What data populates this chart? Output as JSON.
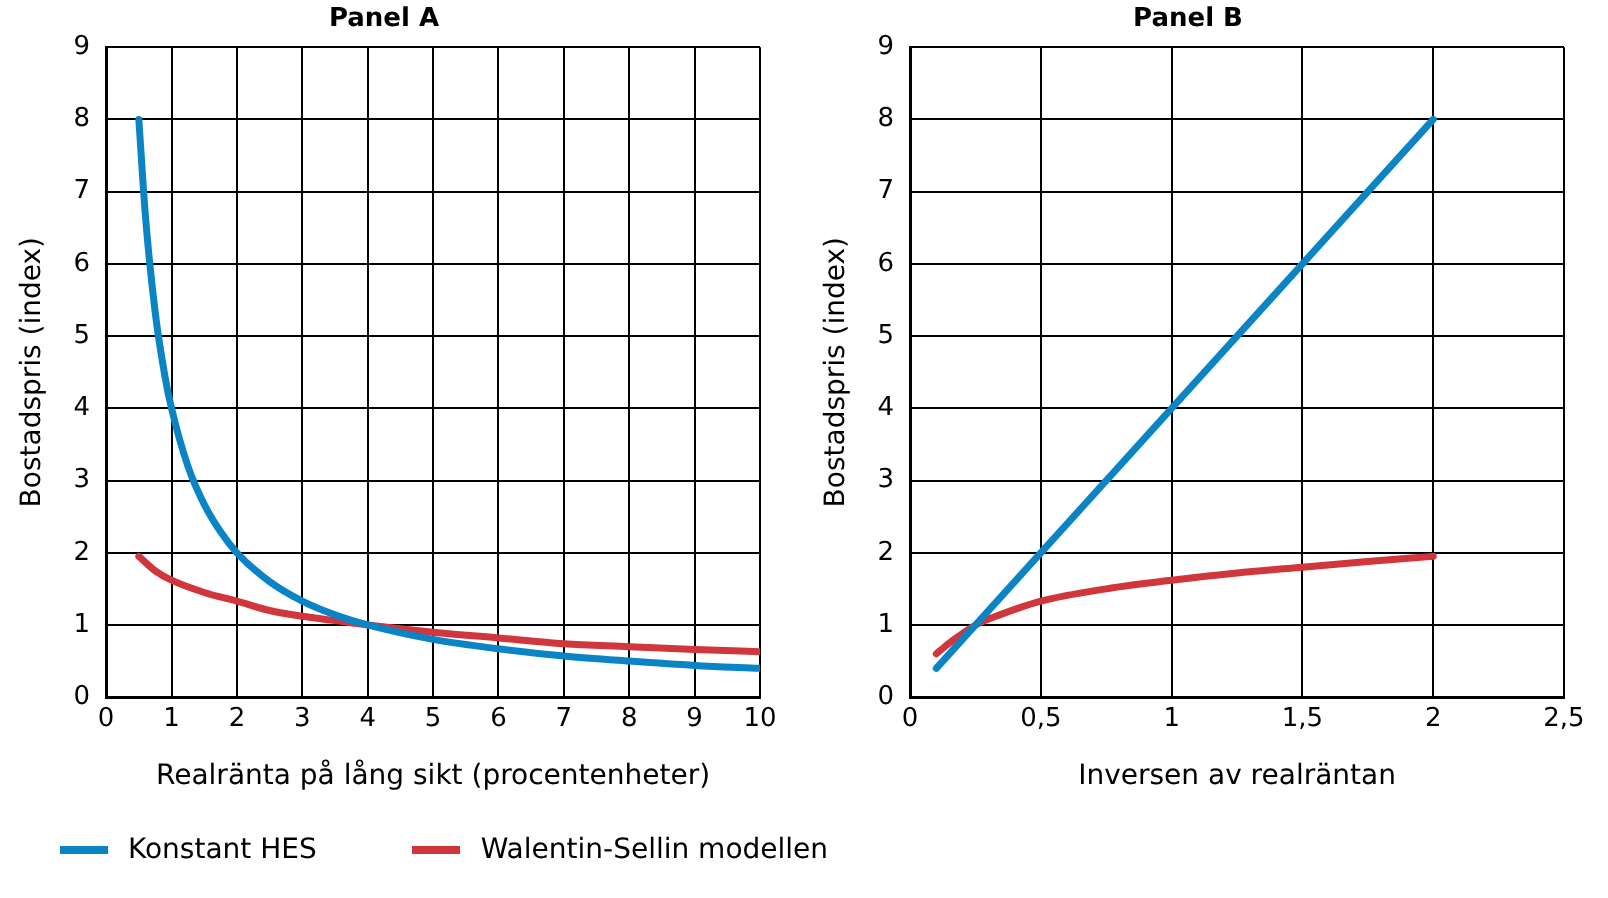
{
  "chart_data": [
    {
      "type": "line",
      "title": "Panel A",
      "xlabel": "Realränta på lång sikt (procentenheter)",
      "ylabel": "Bostadspris (index)",
      "xlim": [
        0,
        10
      ],
      "xticks": [
        0,
        1,
        2,
        3,
        4,
        5,
        6,
        7,
        8,
        9,
        10
      ],
      "ylim": [
        0,
        9
      ],
      "yticks": [
        0,
        1,
        2,
        3,
        4,
        5,
        6,
        7,
        8,
        9
      ],
      "grid": true,
      "legend": "bottom",
      "marker": "none",
      "series": [
        {
          "name": "Konstant HES",
          "color": "#0a84c4",
          "x": [
            0.5,
            0.6,
            0.75,
            0.9,
            1,
            1.25,
            1.5,
            1.75,
            2,
            2.5,
            3,
            3.5,
            4,
            5,
            6,
            7,
            8,
            9,
            10
          ],
          "values": [
            8,
            6.67,
            5.33,
            4.44,
            4,
            3.2,
            2.67,
            2.29,
            2,
            1.6,
            1.33,
            1.14,
            1,
            0.8,
            0.67,
            0.57,
            0.5,
            0.44,
            0.4
          ]
        },
        {
          "name": "Walentin-Sellin modellen",
          "color": "#d0363c",
          "x": [
            0.5,
            0.75,
            1,
            1.5,
            2,
            2.5,
            3,
            3.5,
            4,
            5,
            6,
            7,
            8,
            9,
            10
          ],
          "values": [
            1.95,
            1.75,
            1.62,
            1.45,
            1.33,
            1.2,
            1.12,
            1.06,
            1,
            0.9,
            0.82,
            0.74,
            0.7,
            0.66,
            0.63
          ]
        }
      ]
    },
    {
      "type": "line",
      "title": "Panel B",
      "xlabel": "Inversen av realräntan",
      "ylabel": "Bostadspris (index)",
      "xlim": [
        0,
        2.5
      ],
      "xticks": [
        0,
        {
          "value": 0.5,
          "label": "0,5"
        },
        1,
        {
          "value": 1.5,
          "label": "1,5"
        },
        2,
        {
          "value": 2.5,
          "label": "2,5"
        }
      ],
      "ylim": [
        0,
        9
      ],
      "yticks": [
        0,
        1,
        2,
        3,
        4,
        5,
        6,
        7,
        8,
        9
      ],
      "grid": true,
      "marker": "none",
      "series": [
        {
          "color": "#0a84c4",
          "x": [
            0.1,
            2
          ],
          "values": [
            0.4,
            8
          ]
        },
        {
          "color": "#d0363c",
          "x": [
            0.1,
            0.15,
            0.2,
            0.25,
            0.35,
            0.5,
            0.75,
            1,
            1.25,
            1.5,
            1.75,
            2
          ],
          "values": [
            0.6,
            0.75,
            0.88,
            1,
            1.15,
            1.33,
            1.5,
            1.62,
            1.72,
            1.8,
            1.88,
            1.95
          ]
        }
      ]
    }
  ]
}
